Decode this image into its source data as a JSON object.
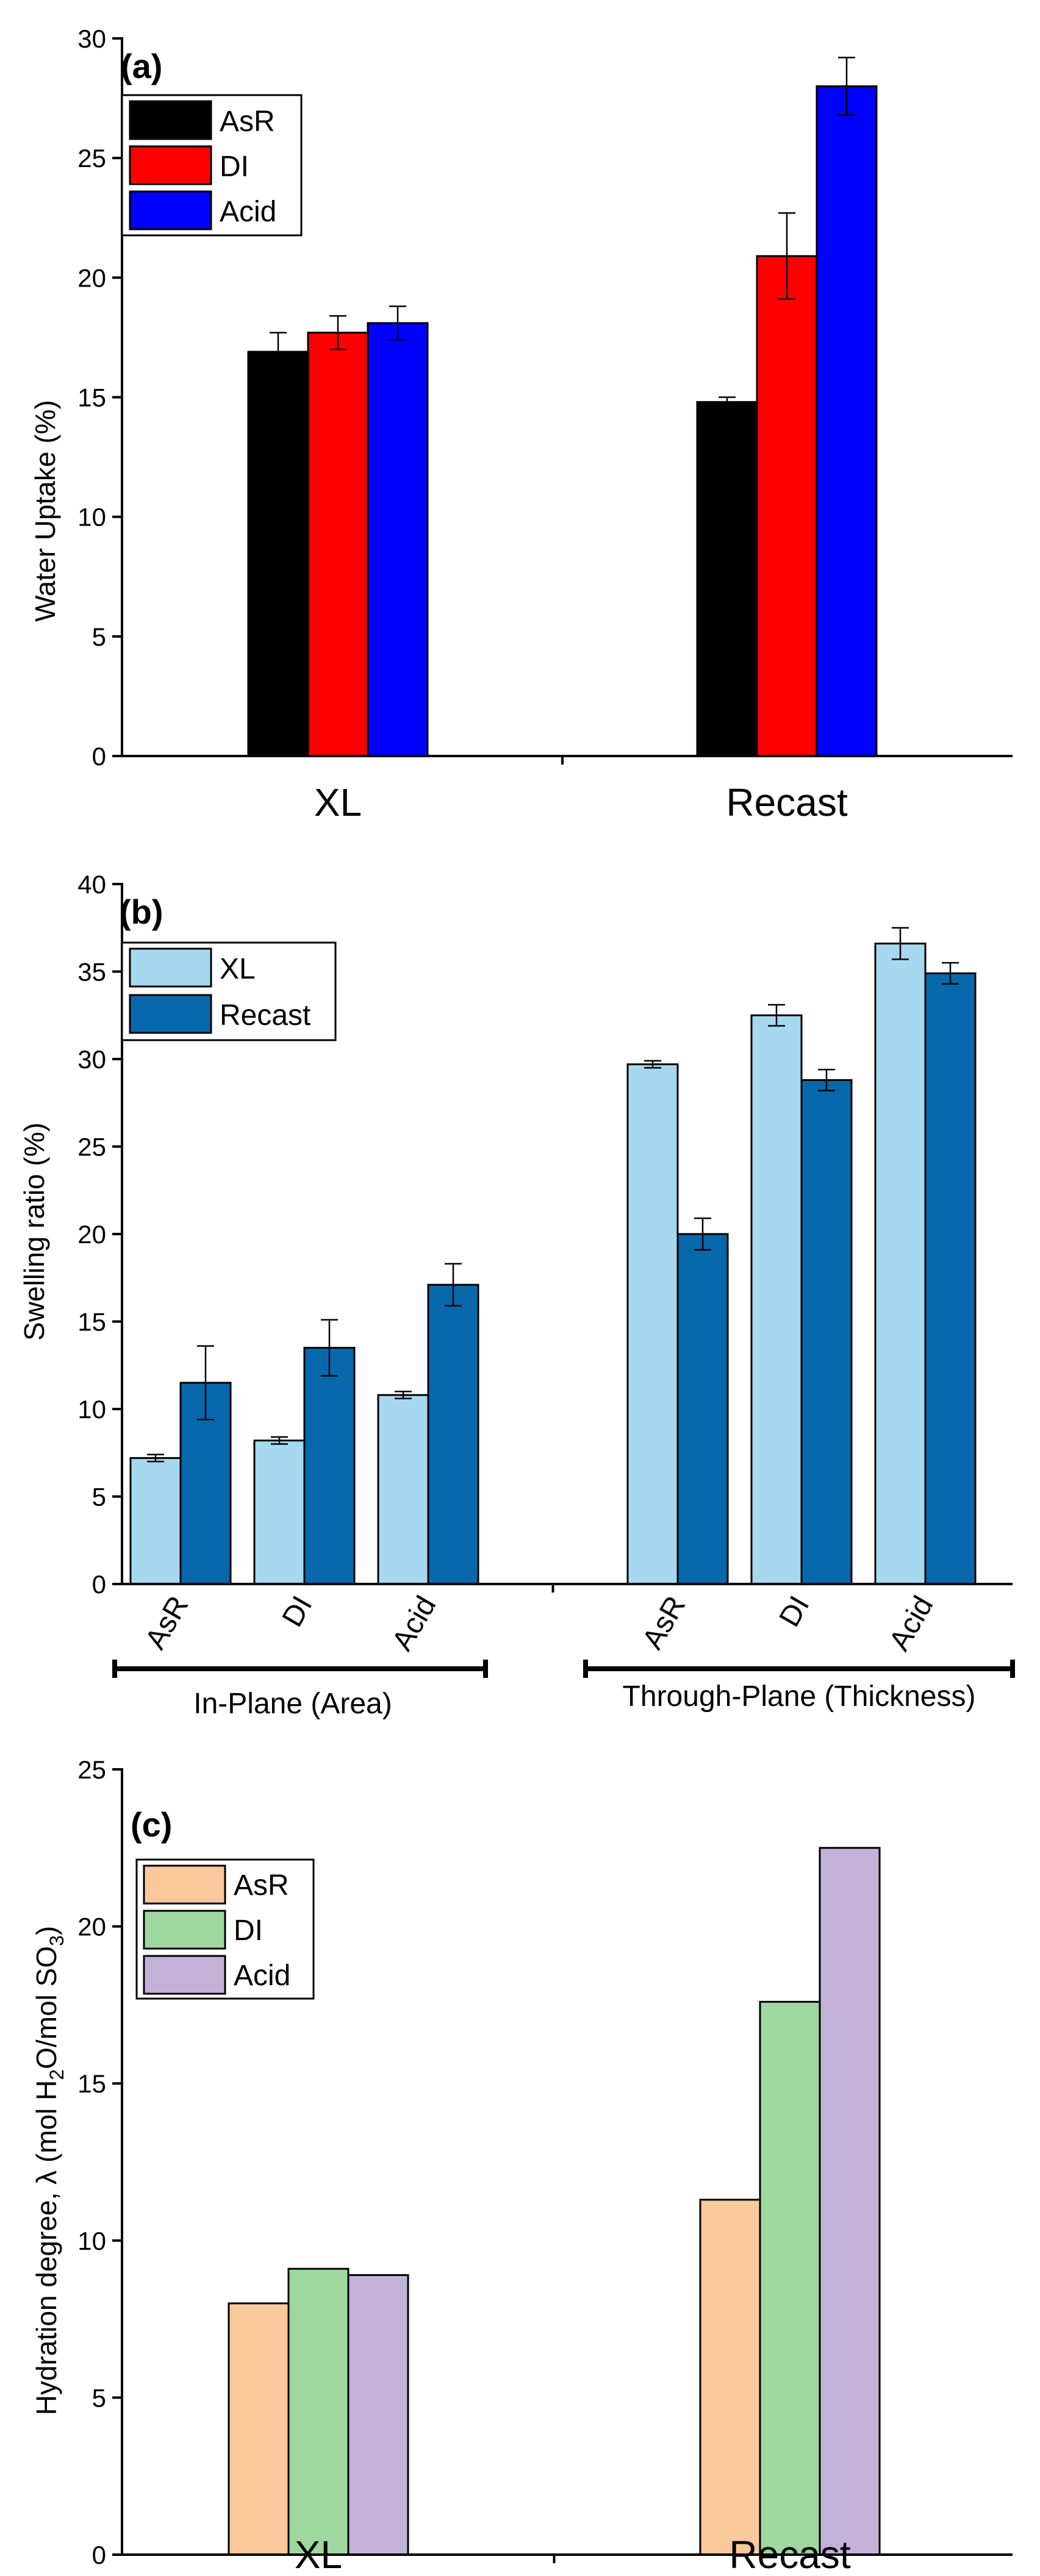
{
  "chart_data": [
    {
      "type": "bar",
      "panel_label": "(a)",
      "ylabel": "Water Uptake (%)",
      "xlabel": "",
      "ylim": [
        0,
        30
      ],
      "yticks": [
        0,
        5,
        10,
        15,
        20,
        25,
        30
      ],
      "categories": [
        "XL",
        "Recast"
      ],
      "legend_position": "top-left",
      "series": [
        {
          "name": "AsR",
          "color": "#000000",
          "values": [
            16.9,
            14.8
          ],
          "errors": [
            0.8,
            0.2
          ]
        },
        {
          "name": "DI",
          "color": "#ff0000",
          "values": [
            17.7,
            20.9
          ],
          "errors": [
            0.7,
            1.8
          ]
        },
        {
          "name": "Acid",
          "color": "#0000ff",
          "values": [
            18.1,
            28.0
          ],
          "errors": [
            0.7,
            1.2
          ]
        }
      ]
    },
    {
      "type": "bar",
      "panel_label": "(b)",
      "ylabel": "Swelling ratio (%)",
      "xlabel": "",
      "ylim": [
        0,
        40
      ],
      "yticks": [
        0,
        5,
        10,
        15,
        20,
        25,
        30,
        35,
        40
      ],
      "categories": [
        "AsR",
        "DI",
        "Acid",
        "AsR",
        "DI",
        "Acid"
      ],
      "category_groups": [
        {
          "label": "In-Plane (Area)",
          "categories": [
            "AsR",
            "DI",
            "Acid"
          ]
        },
        {
          "label": "Through-Plane (Thickness)",
          "categories": [
            "AsR",
            "DI",
            "Acid"
          ]
        }
      ],
      "legend_position": "top-left",
      "series": [
        {
          "name": "XL",
          "color": "#a6d8f0",
          "values": [
            7.2,
            8.2,
            10.8,
            29.7,
            32.5,
            36.6
          ],
          "errors": [
            0.2,
            0.2,
            0.2,
            0.2,
            0.6,
            0.9
          ]
        },
        {
          "name": "Recast",
          "color": "#0868ac",
          "values": [
            11.5,
            13.5,
            17.1,
            20.0,
            28.8,
            34.9
          ],
          "errors": [
            2.1,
            1.6,
            1.2,
            0.9,
            0.6,
            0.6
          ]
        }
      ]
    },
    {
      "type": "bar",
      "panel_label": "(c)",
      "ylabel_main": "Hydration degree, λ (mol H",
      "ylabel_sub1": "2",
      "ylabel_mid": "O/mol SO",
      "ylabel_sub2": "3",
      "ylabel_end": ")",
      "xlabel": "",
      "ylim": [
        0,
        25
      ],
      "yticks": [
        0,
        5,
        10,
        15,
        20,
        25
      ],
      "categories": [
        "XL",
        "Recast"
      ],
      "legend_position": "top-left",
      "series": [
        {
          "name": "AsR",
          "color": "#f9c89b",
          "values": [
            8.0,
            11.3
          ]
        },
        {
          "name": "DI",
          "color": "#9ed89e",
          "values": [
            9.1,
            17.6
          ]
        },
        {
          "name": "Acid",
          "color": "#c2b2d8",
          "values": [
            8.9,
            22.5
          ]
        }
      ]
    }
  ]
}
